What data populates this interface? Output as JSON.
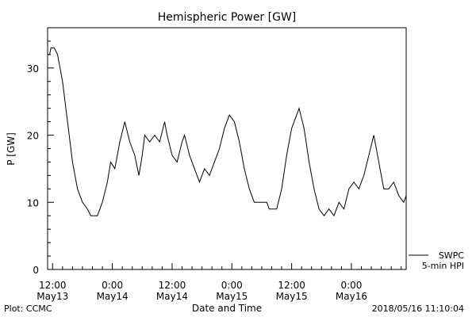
{
  "chart_data": {
    "type": "line",
    "title": "Hemispheric Power [GW]",
    "xlabel": "Date and Time",
    "ylabel": "P [GW]",
    "ylim": [
      0,
      36
    ],
    "yticks": [
      0,
      10,
      20,
      30
    ],
    "grid": false,
    "x_start": "2018-05-13 11:00",
    "x_end": "2018-05-16 11:00",
    "x_tick_labels": [
      {
        "time": "12:00",
        "date": "May13"
      },
      {
        "time": "0:00",
        "date": "May14"
      },
      {
        "time": "12:00",
        "date": "May14"
      },
      {
        "time": "0:00",
        "date": "May15"
      },
      {
        "time": "12:00",
        "date": "May15"
      },
      {
        "time": "0:00",
        "date": "May16"
      }
    ],
    "series": [
      {
        "name": "5-min HPI",
        "points": [
          [
            "2018-05-13 11:00",
            32
          ],
          [
            "2018-05-13 11:25",
            32
          ],
          [
            "2018-05-13 11:40",
            33
          ],
          [
            "2018-05-13 12:20",
            33
          ],
          [
            "2018-05-13 13:00",
            32
          ],
          [
            "2018-05-13 13:30",
            30
          ],
          [
            "2018-05-13 14:00",
            28
          ],
          [
            "2018-05-13 15:00",
            22
          ],
          [
            "2018-05-13 16:00",
            16
          ],
          [
            "2018-05-13 17:00",
            12
          ],
          [
            "2018-05-13 18:00",
            10
          ],
          [
            "2018-05-13 19:00",
            9
          ],
          [
            "2018-05-13 19:40",
            8
          ],
          [
            "2018-05-13 21:00",
            8
          ],
          [
            "2018-05-13 22:00",
            10
          ],
          [
            "2018-05-13 23:00",
            13
          ],
          [
            "2018-05-13 23:40",
            16
          ],
          [
            "2018-05-14 00:30",
            15
          ],
          [
            "2018-05-14 01:30",
            19
          ],
          [
            "2018-05-14 02:30",
            22
          ],
          [
            "2018-05-14 03:30",
            19
          ],
          [
            "2018-05-14 04:30",
            17
          ],
          [
            "2018-05-14 05:20",
            14
          ],
          [
            "2018-05-14 06:00",
            17
          ],
          [
            "2018-05-14 06:30",
            20
          ],
          [
            "2018-05-14 07:30",
            19
          ],
          [
            "2018-05-14 08:30",
            20
          ],
          [
            "2018-05-14 09:30",
            19
          ],
          [
            "2018-05-14 10:30",
            22
          ],
          [
            "2018-05-14 11:00",
            20
          ],
          [
            "2018-05-14 12:00",
            17
          ],
          [
            "2018-05-14 13:00",
            16
          ],
          [
            "2018-05-14 14:00",
            19
          ],
          [
            "2018-05-14 14:30",
            20
          ],
          [
            "2018-05-14 15:30",
            17
          ],
          [
            "2018-05-14 16:30",
            15
          ],
          [
            "2018-05-14 17:30",
            13
          ],
          [
            "2018-05-14 18:30",
            15
          ],
          [
            "2018-05-14 19:30",
            14
          ],
          [
            "2018-05-14 20:30",
            16
          ],
          [
            "2018-05-14 21:30",
            18
          ],
          [
            "2018-05-14 22:30",
            21
          ],
          [
            "2018-05-14 23:30",
            23
          ],
          [
            "2018-05-15 00:30",
            22
          ],
          [
            "2018-05-15 01:30",
            19
          ],
          [
            "2018-05-15 02:30",
            15
          ],
          [
            "2018-05-15 03:30",
            12
          ],
          [
            "2018-05-15 04:30",
            10
          ],
          [
            "2018-05-15 05:30",
            10
          ],
          [
            "2018-05-15 07:00",
            10
          ],
          [
            "2018-05-15 07:30",
            9
          ],
          [
            "2018-05-15 09:00",
            9
          ],
          [
            "2018-05-15 10:00",
            12
          ],
          [
            "2018-05-15 11:00",
            17
          ],
          [
            "2018-05-15 12:00",
            21
          ],
          [
            "2018-05-15 13:00",
            23
          ],
          [
            "2018-05-15 13:30",
            24
          ],
          [
            "2018-05-15 14:30",
            21
          ],
          [
            "2018-05-15 15:30",
            16
          ],
          [
            "2018-05-15 16:30",
            12
          ],
          [
            "2018-05-15 17:30",
            9
          ],
          [
            "2018-05-15 18:30",
            8
          ],
          [
            "2018-05-15 19:30",
            9
          ],
          [
            "2018-05-15 20:30",
            8
          ],
          [
            "2018-05-15 21:30",
            10
          ],
          [
            "2018-05-15 22:30",
            9
          ],
          [
            "2018-05-15 23:30",
            12
          ],
          [
            "2018-05-16 00:30",
            13
          ],
          [
            "2018-05-16 01:30",
            12
          ],
          [
            "2018-05-16 02:30",
            14
          ],
          [
            "2018-05-16 03:30",
            17
          ],
          [
            "2018-05-16 04:30",
            20
          ],
          [
            "2018-05-16 05:30",
            16
          ],
          [
            "2018-05-16 06:30",
            12
          ],
          [
            "2018-05-16 07:30",
            12
          ],
          [
            "2018-05-16 08:30",
            13
          ],
          [
            "2018-05-16 09:30",
            11
          ],
          [
            "2018-05-16 10:30",
            10
          ],
          [
            "2018-05-16 11:00",
            11
          ]
        ]
      }
    ],
    "annotations": {
      "legend_lines": [
        "SWPC",
        "5-min HPI"
      ],
      "plot_credit": "Plot: CCMC",
      "timestamp": "2018/05/16 11:10:04"
    }
  }
}
